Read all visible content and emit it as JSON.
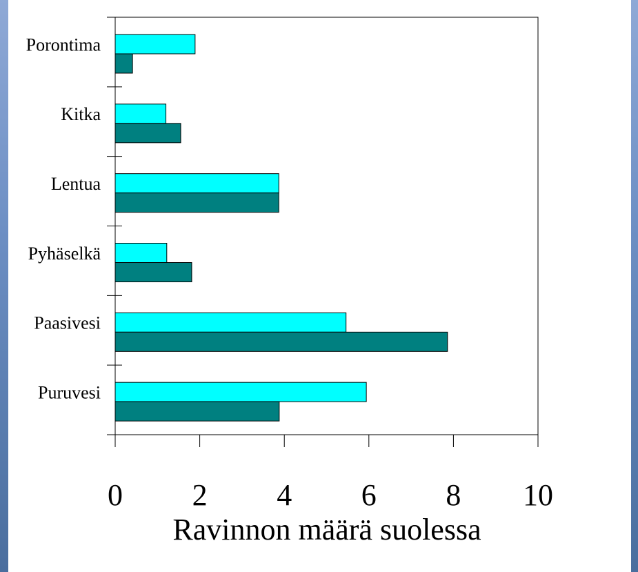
{
  "chart_data": {
    "type": "bar",
    "orientation": "horizontal",
    "x_label": "Ravinnon määrä suolessa",
    "categories": [
      "Porontima",
      "Kitka",
      "Lentua",
      "Pyhäselkä",
      "Paasivesi",
      "Puruvesi"
    ],
    "series": [
      {
        "color": "#00ffff",
        "values": [
          1.89,
          1.2,
          3.87,
          1.22,
          5.46,
          5.94
        ]
      },
      {
        "color": "#008080",
        "values": [
          0.41,
          1.55,
          3.87,
          1.81,
          7.86,
          3.88
        ]
      }
    ],
    "xlim": [
      0,
      10
    ],
    "xticks": [
      0,
      2,
      4,
      6,
      8,
      10
    ]
  }
}
